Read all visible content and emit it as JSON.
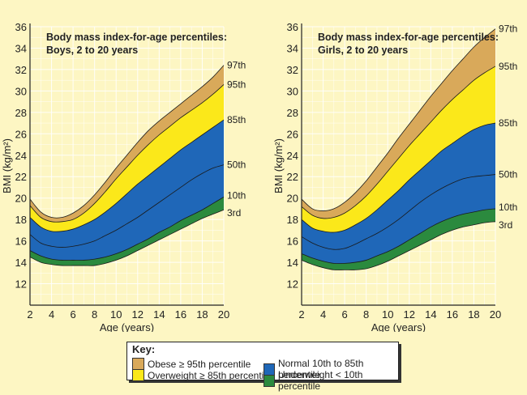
{
  "chart_data": [
    {
      "type": "area",
      "title": "Body mass index-for-age percentiles:",
      "subtitle": "Boys, 2 to 20 years",
      "xlabel": "Age (years)",
      "ylabel": "BMI (kg/m²)",
      "xlim": [
        2,
        20
      ],
      "ylim": [
        10,
        36
      ],
      "xticks": [
        2,
        4,
        6,
        8,
        10,
        12,
        14,
        16,
        18,
        20
      ],
      "yticks": [
        12,
        14,
        16,
        18,
        20,
        22,
        24,
        26,
        28,
        30,
        32,
        34,
        36
      ],
      "grid": true,
      "x": [
        2,
        3,
        4,
        5,
        6,
        7,
        8,
        9,
        10,
        11,
        12,
        13,
        14,
        15,
        16,
        17,
        18,
        19,
        20
      ],
      "series": [
        {
          "name": "97th",
          "values": [
            19.9,
            18.7,
            18.2,
            18.2,
            18.6,
            19.3,
            20.3,
            21.5,
            22.8,
            24.0,
            25.2,
            26.3,
            27.2,
            28.0,
            28.8,
            29.6,
            30.4,
            31.3,
            32.4
          ]
        },
        {
          "name": "95th",
          "values": [
            19.3,
            18.2,
            17.8,
            17.8,
            18.0,
            18.6,
            19.5,
            20.6,
            21.8,
            22.9,
            24.0,
            25.0,
            25.9,
            26.7,
            27.5,
            28.2,
            28.9,
            29.7,
            30.6
          ]
        },
        {
          "name": "85th",
          "values": [
            18.2,
            17.3,
            16.9,
            16.9,
            17.1,
            17.5,
            18.0,
            18.7,
            19.5,
            20.4,
            21.3,
            22.1,
            22.9,
            23.7,
            24.5,
            25.2,
            25.9,
            26.6,
            27.3
          ]
        },
        {
          "name": "50th",
          "values": [
            16.6,
            15.8,
            15.5,
            15.4,
            15.5,
            15.7,
            16.0,
            16.5,
            17.0,
            17.6,
            18.2,
            18.9,
            19.6,
            20.3,
            21.0,
            21.7,
            22.3,
            22.8,
            23.1
          ]
        },
        {
          "name": "10th",
          "values": [
            15.1,
            14.6,
            14.3,
            14.2,
            14.2,
            14.2,
            14.3,
            14.5,
            14.8,
            15.2,
            15.7,
            16.2,
            16.8,
            17.3,
            17.9,
            18.4,
            18.9,
            19.5,
            20.1
          ]
        },
        {
          "name": "3rd",
          "values": [
            14.5,
            14.0,
            13.8,
            13.7,
            13.7,
            13.7,
            13.7,
            13.9,
            14.2,
            14.6,
            15.1,
            15.6,
            16.1,
            16.6,
            17.1,
            17.6,
            18.1,
            18.5,
            18.9
          ]
        }
      ]
    },
    {
      "type": "area",
      "title": "Body mass index-for-age percentiles:",
      "subtitle": "Girls, 2 to 20 years",
      "xlabel": "Age (years)",
      "ylabel": "BMI (kg/m²)",
      "xlim": [
        2,
        20
      ],
      "ylim": [
        10,
        36
      ],
      "xticks": [
        2,
        4,
        6,
        8,
        10,
        12,
        14,
        16,
        18,
        20
      ],
      "yticks": [
        12,
        14,
        16,
        18,
        20,
        22,
        24,
        26,
        28,
        30,
        32,
        34,
        36
      ],
      "grid": true,
      "x": [
        2,
        3,
        4,
        5,
        6,
        7,
        8,
        9,
        10,
        11,
        12,
        13,
        14,
        15,
        16,
        17,
        18,
        19,
        20
      ],
      "series": [
        {
          "name": "97th",
          "values": [
            19.9,
            19.0,
            18.8,
            19.0,
            19.6,
            20.5,
            21.6,
            22.9,
            24.2,
            25.6,
            26.9,
            28.2,
            29.5,
            30.7,
            31.9,
            33.0,
            34.1,
            35.0,
            35.8
          ]
        },
        {
          "name": "95th",
          "values": [
            19.2,
            18.4,
            18.1,
            18.2,
            18.6,
            19.3,
            20.2,
            21.3,
            22.5,
            23.7,
            24.9,
            26.0,
            27.1,
            28.2,
            29.2,
            30.1,
            31.0,
            31.7,
            32.3
          ]
        },
        {
          "name": "85th",
          "values": [
            18.0,
            17.2,
            16.9,
            16.8,
            17.0,
            17.5,
            18.1,
            18.9,
            19.8,
            20.7,
            21.7,
            22.6,
            23.5,
            24.4,
            25.1,
            25.8,
            26.4,
            26.8,
            27.0
          ]
        },
        {
          "name": "50th",
          "values": [
            16.4,
            15.8,
            15.4,
            15.2,
            15.3,
            15.7,
            16.2,
            16.7,
            17.3,
            18.0,
            18.8,
            19.6,
            20.3,
            20.9,
            21.4,
            21.8,
            22.0,
            22.1,
            22.2
          ]
        },
        {
          "name": "10th",
          "values": [
            14.8,
            14.4,
            14.1,
            13.9,
            13.9,
            14.0,
            14.2,
            14.6,
            15.0,
            15.5,
            16.1,
            16.7,
            17.3,
            17.8,
            18.2,
            18.5,
            18.7,
            18.9,
            19.0
          ]
        },
        {
          "name": "3rd",
          "values": [
            14.2,
            13.8,
            13.5,
            13.3,
            13.3,
            13.3,
            13.4,
            13.7,
            14.1,
            14.6,
            15.1,
            15.6,
            16.1,
            16.6,
            17.0,
            17.3,
            17.5,
            17.7,
            17.8
          ]
        }
      ]
    }
  ],
  "colors": {
    "obese": "#d9a95a",
    "overweight": "#fbe81a",
    "normal": "#1f67b8",
    "underweight": "#2b8a3e",
    "background": "#fdf6c3",
    "grid": "#ffffff"
  },
  "key": {
    "title": "Key:",
    "items": [
      {
        "label": "Obese ≥ 95th percentile",
        "color": "#d9a95a"
      },
      {
        "label": "Overweight ≥ 85th percentile",
        "color": "#fbe81a"
      },
      {
        "label": "Normal 10th to 85th percentile",
        "color": "#1f67b8"
      },
      {
        "label": "Underweight < 10th percentile",
        "color": "#2b8a3e"
      }
    ]
  }
}
